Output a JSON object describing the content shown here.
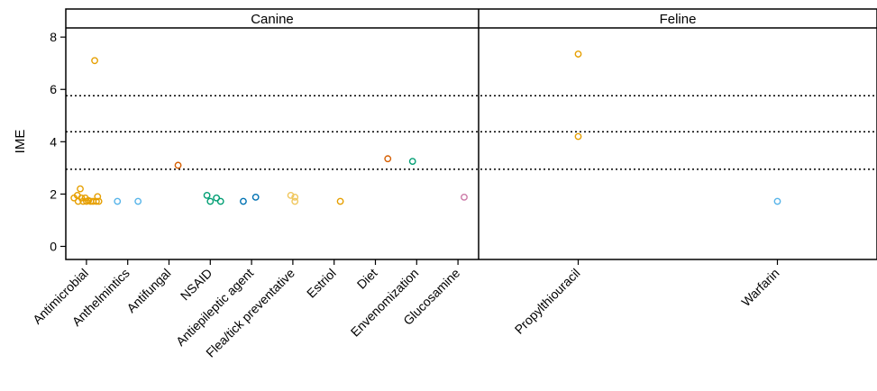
{
  "chart_data": {
    "type": "scatter",
    "ylabel": "IME",
    "ylim": [
      -0.5,
      8.35
    ],
    "yticks": [
      0,
      2,
      4,
      6,
      8
    ],
    "reference_lines": [
      2.95,
      4.38,
      5.76
    ],
    "reference_line_style": "dotted",
    "grid": false,
    "legend": "none",
    "panels": [
      {
        "name": "Canine",
        "categories": [
          "Antimicrobial",
          "Anthelmintics",
          "Antifungal",
          "NSAID",
          "Antiepileptic agent",
          "Flea/tick preventative",
          "Estriol",
          "Diet",
          "Envenomization",
          "Glucosamine"
        ],
        "points": [
          {
            "category": "Antimicrobial",
            "offset": -0.3,
            "y": 1.85,
            "color": "#E69F00"
          },
          {
            "category": "Antimicrobial",
            "offset": -0.22,
            "y": 1.95,
            "color": "#E69F00"
          },
          {
            "category": "Antimicrobial",
            "offset": -0.2,
            "y": 1.72,
            "color": "#E69F00"
          },
          {
            "category": "Antimicrobial",
            "offset": -0.15,
            "y": 2.2,
            "color": "#E69F00"
          },
          {
            "category": "Antimicrobial",
            "offset": -0.12,
            "y": 1.85,
            "color": "#E69F00"
          },
          {
            "category": "Antimicrobial",
            "offset": -0.08,
            "y": 1.72,
            "color": "#E69F00"
          },
          {
            "category": "Antimicrobial",
            "offset": -0.03,
            "y": 1.85,
            "color": "#E69F00"
          },
          {
            "category": "Antimicrobial",
            "offset": 0.0,
            "y": 1.72,
            "color": "#E69F00"
          },
          {
            "category": "Antimicrobial",
            "offset": 0.05,
            "y": 1.75,
            "color": "#E69F00"
          },
          {
            "category": "Antimicrobial",
            "offset": 0.1,
            "y": 1.72,
            "color": "#E69F00"
          },
          {
            "category": "Antimicrobial",
            "offset": 0.16,
            "y": 1.72,
            "color": "#E69F00"
          },
          {
            "category": "Antimicrobial",
            "offset": 0.2,
            "y": 7.1,
            "color": "#E69F00"
          },
          {
            "category": "Antimicrobial",
            "offset": 0.24,
            "y": 1.72,
            "color": "#E69F00"
          },
          {
            "category": "Antimicrobial",
            "offset": 0.27,
            "y": 1.9,
            "color": "#E69F00"
          },
          {
            "category": "Antimicrobial",
            "offset": 0.3,
            "y": 1.72,
            "color": "#E69F00"
          },
          {
            "category": "Anthelmintics",
            "offset": -0.25,
            "y": 1.72,
            "color": "#56B4E9"
          },
          {
            "category": "Anthelmintics",
            "offset": 0.25,
            "y": 1.72,
            "color": "#56B4E9"
          },
          {
            "category": "Antifungal",
            "offset": 0.22,
            "y": 3.1,
            "color": "#D55E00"
          },
          {
            "category": "NSAID",
            "offset": -0.08,
            "y": 1.95,
            "color": "#009E73"
          },
          {
            "category": "NSAID",
            "offset": 0.0,
            "y": 1.72,
            "color": "#009E73"
          },
          {
            "category": "NSAID",
            "offset": 0.15,
            "y": 1.85,
            "color": "#009E73"
          },
          {
            "category": "NSAID",
            "offset": 0.25,
            "y": 1.72,
            "color": "#009E73"
          },
          {
            "category": "Antiepileptic agent",
            "offset": -0.2,
            "y": 1.72,
            "color": "#0072B2"
          },
          {
            "category": "Antiepileptic agent",
            "offset": 0.1,
            "y": 1.88,
            "color": "#0072B2"
          },
          {
            "category": "Flea/tick preventative",
            "offset": -0.05,
            "y": 1.95,
            "color": "#F0C75E"
          },
          {
            "category": "Flea/tick preventative",
            "offset": 0.05,
            "y": 1.72,
            "color": "#F0C75E"
          },
          {
            "category": "Flea/tick preventative",
            "offset": 0.05,
            "y": 1.88,
            "color": "#F0C75E"
          },
          {
            "category": "Estriol",
            "offset": 0.15,
            "y": 1.72,
            "color": "#E69F00"
          },
          {
            "category": "Diet",
            "offset": 0.3,
            "y": 3.35,
            "color": "#D55E00"
          },
          {
            "category": "Envenomization",
            "offset": -0.1,
            "y": 3.25,
            "color": "#009E73"
          },
          {
            "category": "Glucosamine",
            "offset": 0.15,
            "y": 1.88,
            "color": "#CC79A7"
          }
        ]
      },
      {
        "name": "Feline",
        "categories": [
          "Propylthiouracil",
          "Warfarin"
        ],
        "points": [
          {
            "category": "Propylthiouracil",
            "offset": 0.0,
            "y": 7.35,
            "color": "#E69F00"
          },
          {
            "category": "Propylthiouracil",
            "offset": 0.0,
            "y": 4.2,
            "color": "#E69F00"
          },
          {
            "category": "Warfarin",
            "offset": 0.0,
            "y": 1.72,
            "color": "#56B4E9"
          }
        ]
      }
    ]
  }
}
